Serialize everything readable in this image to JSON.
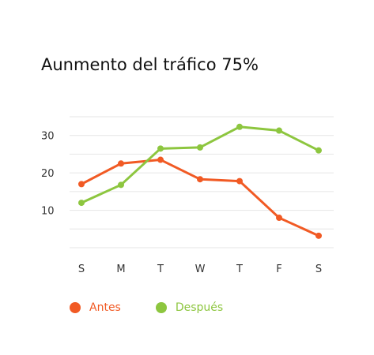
{
  "chart_data": {
    "type": "line",
    "title": "Aunmento del tráfico 75%",
    "xlabel": "",
    "ylabel": "",
    "categories": [
      "S",
      "M",
      "T",
      "W",
      "T",
      "F",
      "S"
    ],
    "yticks": [
      10,
      20,
      30
    ],
    "ylim": [
      0,
      35
    ],
    "grid": true,
    "legend": "bottom-left",
    "series": [
      {
        "name": "Antes",
        "color": "#f15a24",
        "values": [
          17,
          22.5,
          23.5,
          18.3,
          17.8,
          8,
          3.2
        ]
      },
      {
        "name": "Después",
        "color": "#8dc63f",
        "values": [
          12,
          16.8,
          26.5,
          26.8,
          32.3,
          31.3,
          26
        ]
      }
    ]
  }
}
